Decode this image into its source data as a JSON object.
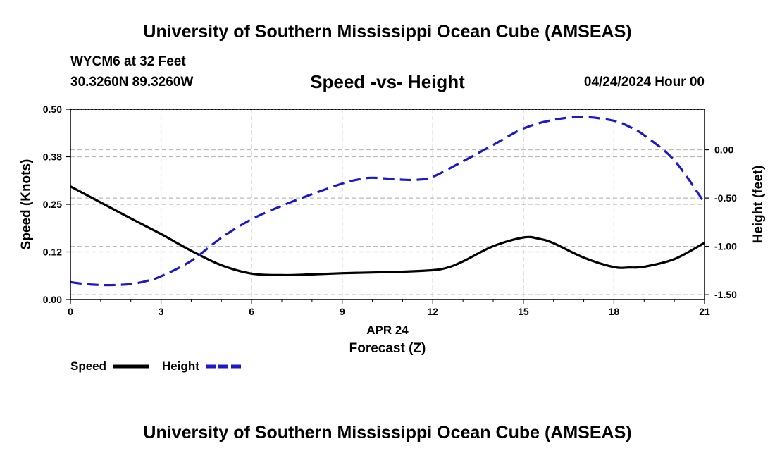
{
  "page": {
    "title_top": "University of Southern Mississippi Ocean Cube (AMSEAS)",
    "title_bottom": "University of Southern Mississippi Ocean Cube (AMSEAS)",
    "station": "WYCM6 at 32 Feet",
    "location": "30.3260N  89.3260W",
    "subtitle": "Speed -vs- Height",
    "datetime": "04/24/2024 Hour 00"
  },
  "chart_data": {
    "type": "line",
    "title": "Speed -vs- Height",
    "xlabel": "Forecast (Z)",
    "xsublabel": "APR 24",
    "ylabel_left": "Speed (Knots)",
    "ylabel_right": "Height (feet)",
    "xlim": [
      0,
      21
    ],
    "ylim_left": [
      0,
      0.5
    ],
    "ylim_right": [
      -1.55,
      0.42
    ],
    "x_ticks": [
      0,
      3,
      6,
      9,
      12,
      15,
      18,
      21
    ],
    "x_tick_labels": [
      "0",
      "3",
      "6",
      "9",
      "12",
      "15",
      "18",
      "21"
    ],
    "y_left_ticks": [
      0,
      0.125,
      0.25,
      0.375,
      0.5
    ],
    "y_left_tick_labels": [
      "0.00",
      "0.12",
      "0.25",
      "0.38",
      "0.50"
    ],
    "y_right_ticks": [
      0,
      -0.5,
      -1.0,
      -1.5
    ],
    "y_right_tick_labels": [
      "0.00",
      "-0.50",
      "-1.00",
      "-1.50"
    ],
    "grid": true,
    "colors": {
      "speed": "#000000",
      "height": "#1a1acc",
      "grid": "#bbbbbb"
    },
    "series": [
      {
        "name": "Speed",
        "axis": "left",
        "style": "solid",
        "x": [
          0,
          1,
          2,
          3,
          4,
          5,
          6,
          7,
          8,
          9,
          10,
          11,
          12,
          12.5,
          13,
          14,
          15,
          15.5,
          16,
          17,
          18,
          18.5,
          19,
          20,
          21
        ],
        "values": [
          0.297,
          0.255,
          0.213,
          0.172,
          0.128,
          0.09,
          0.068,
          0.064,
          0.066,
          0.069,
          0.071,
          0.073,
          0.077,
          0.084,
          0.1,
          0.14,
          0.163,
          0.16,
          0.148,
          0.11,
          0.085,
          0.084,
          0.086,
          0.106,
          0.149
        ]
      },
      {
        "name": "Height",
        "axis": "right",
        "style": "dashed",
        "x": [
          0,
          0.5,
          1,
          1.5,
          2,
          2.5,
          3,
          4,
          5,
          6,
          7,
          8,
          9,
          9.5,
          10,
          11,
          11.5,
          12,
          13,
          14,
          15,
          16,
          17,
          18,
          18.5,
          19,
          20,
          21
        ],
        "values": [
          -1.37,
          -1.39,
          -1.4,
          -1.4,
          -1.39,
          -1.36,
          -1.31,
          -1.15,
          -0.91,
          -0.72,
          -0.58,
          -0.46,
          -0.35,
          -0.31,
          -0.29,
          -0.31,
          -0.31,
          -0.28,
          -0.12,
          0.05,
          0.22,
          0.31,
          0.34,
          0.3,
          0.24,
          0.15,
          -0.11,
          -0.55
        ]
      }
    ],
    "legend": [
      {
        "label": "Speed",
        "style": "solid",
        "color": "#000000"
      },
      {
        "label": "Height",
        "style": "dashed",
        "color": "#1a1acc"
      }
    ],
    "legend_position": "bottom-left"
  }
}
